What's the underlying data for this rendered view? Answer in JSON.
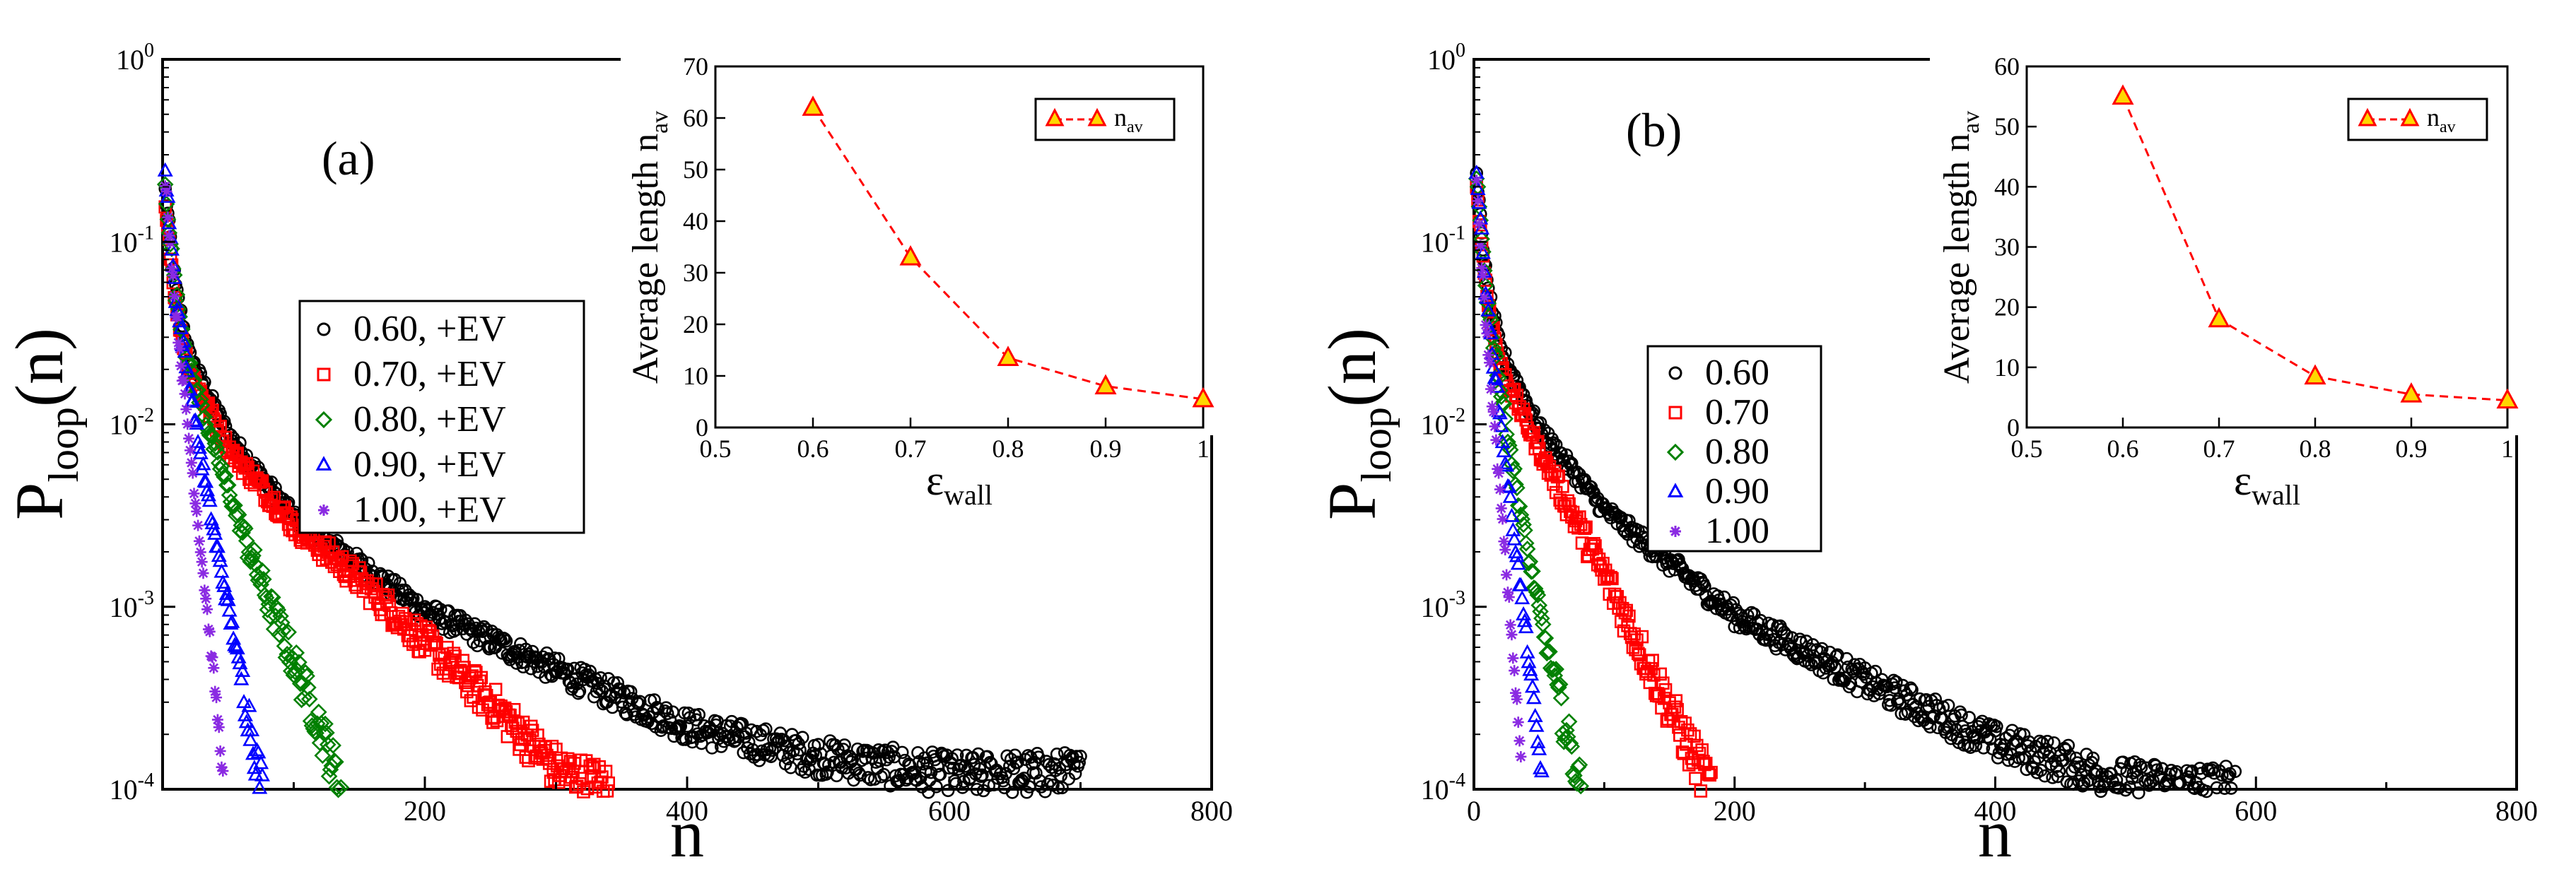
{
  "chart_data": [
    {
      "type": "scatter",
      "panel_label": "(a)",
      "ylabel_main": "P",
      "ylabel_sub": "loop",
      "ylabel_tail": "(n)",
      "xlabel": "n",
      "yscale": "log",
      "xlim": [
        0,
        800
      ],
      "ylim": [
        0.0001,
        1
      ],
      "xticks": [
        200,
        400,
        600,
        800
      ],
      "ytick_exponents": [
        "0",
        "-1",
        "-2",
        "-3",
        "-4"
      ],
      "legend": [
        {
          "label": "0.60, +EV",
          "marker": "circle",
          "color": "#000000"
        },
        {
          "label": "0.70, +EV",
          "marker": "square",
          "color": "#ff0000"
        },
        {
          "label": "0.80, +EV",
          "marker": "diamond",
          "color": "#008000"
        },
        {
          "label": "0.90, +EV",
          "marker": "triangle",
          "color": "#0000ff"
        },
        {
          "label": "1.00, +EV",
          "marker": "star",
          "color": "#8a2be2"
        }
      ],
      "series": [
        {
          "name": "0.60, +EV",
          "marker": "circle",
          "color": "#000000",
          "x_range": [
            2,
            700
          ],
          "knots": [
            [
              2,
              0.19
            ],
            [
              10,
              0.056
            ],
            [
              20,
              0.024
            ],
            [
              50,
              0.0088
            ],
            [
              100,
              0.0031
            ],
            [
              200,
              0.00095
            ],
            [
              300,
              0.00045
            ],
            [
              400,
              0.00022
            ],
            [
              500,
              0.00015
            ],
            [
              600,
              0.00012
            ],
            [
              700,
              0.00012
            ]
          ]
        },
        {
          "name": "0.70, +EV",
          "marker": "square",
          "color": "#ff0000",
          "x_range": [
            2,
            340
          ],
          "knots": [
            [
              2,
              0.17
            ],
            [
              10,
              0.045
            ],
            [
              20,
              0.02
            ],
            [
              50,
              0.0074
            ],
            [
              100,
              0.0028
            ],
            [
              150,
              0.0014
            ],
            [
              200,
              0.00064
            ],
            [
              250,
              0.0003
            ],
            [
              300,
              0.00013
            ],
            [
              340,
              0.0001
            ]
          ]
        },
        {
          "name": "0.80, +EV",
          "marker": "diamond",
          "color": "#008000",
          "x_range": [
            2,
            136
          ],
          "knots": [
            [
              2,
              0.2
            ],
            [
              10,
              0.052
            ],
            [
              20,
              0.021
            ],
            [
              40,
              0.0072
            ],
            [
              60,
              0.0027
            ],
            [
              80,
              0.0011
            ],
            [
              100,
              0.0005
            ],
            [
              120,
              0.00022
            ],
            [
              136,
              0.0001
            ]
          ]
        },
        {
          "name": "0.90, +EV",
          "marker": "triangle",
          "color": "#0000ff",
          "x_range": [
            2,
            76
          ],
          "knots": [
            [
              2,
              0.24
            ],
            [
              10,
              0.05
            ],
            [
              20,
              0.017
            ],
            [
              30,
              0.0061
            ],
            [
              40,
              0.0024
            ],
            [
              50,
              0.001
            ],
            [
              60,
              0.00042
            ],
            [
              70,
              0.00017
            ],
            [
              76,
              0.0001
            ]
          ]
        },
        {
          "name": "1.00, +EV",
          "marker": "star",
          "color": "#8a2be2",
          "x_range": [
            2,
            46
          ],
          "knots": [
            [
              2,
              0.22
            ],
            [
              10,
              0.042
            ],
            [
              20,
              0.0085
            ],
            [
              30,
              0.0018
            ],
            [
              40,
              0.00036
            ],
            [
              46,
              0.00012
            ]
          ]
        }
      ],
      "inset": {
        "type": "line",
        "xlabel_main": "ε",
        "xlabel_sub": "wall",
        "ylabel": "Average length n",
        "ylabel_sub": "av",
        "xlim": [
          0.5,
          1.0
        ],
        "ylim": [
          0,
          70
        ],
        "xticks": [
          "0.5",
          "0.6",
          "0.7",
          "0.8",
          "0.9",
          "1"
        ],
        "yticks": [
          "0",
          "10",
          "20",
          "30",
          "40",
          "50",
          "60",
          "70"
        ],
        "legend_main": "n",
        "legend_sub": "av",
        "x": [
          0.6,
          0.7,
          0.8,
          0.9,
          1.0
        ],
        "y": [
          62,
          33,
          13.5,
          8,
          5.5
        ],
        "line_color": "#ff0000",
        "marker_fill": "#ffd700",
        "marker_edge": "#ff0000"
      }
    },
    {
      "type": "scatter",
      "panel_label": "(b)",
      "ylabel_main": "P",
      "ylabel_sub": "loop",
      "ylabel_tail": "(n)",
      "xlabel": "n",
      "yscale": "log",
      "xlim": [
        0,
        800
      ],
      "ylim": [
        0.0001,
        1
      ],
      "xticks": [
        0,
        200,
        400,
        600,
        800
      ],
      "ytick_exponents": [
        "0",
        "-1",
        "-2",
        "-3",
        "-4"
      ],
      "legend": [
        {
          "label": "0.60",
          "marker": "circle",
          "color": "#000000"
        },
        {
          "label": "0.70",
          "marker": "square",
          "color": "#ff0000"
        },
        {
          "label": "0.80",
          "marker": "diamond",
          "color": "#008000"
        },
        {
          "label": "0.90",
          "marker": "triangle",
          "color": "#0000ff"
        },
        {
          "label": "1.00",
          "marker": "star",
          "color": "#8a2be2"
        }
      ],
      "series": [
        {
          "name": "0.60",
          "marker": "circle",
          "color": "#000000",
          "x_range": [
            2,
            585
          ],
          "knots": [
            [
              2,
              0.22
            ],
            [
              10,
              0.058
            ],
            [
              20,
              0.026
            ],
            [
              50,
              0.0095
            ],
            [
              100,
              0.0034
            ],
            [
              200,
              0.0009
            ],
            [
              300,
              0.00039
            ],
            [
              400,
              0.00018
            ],
            [
              500,
              0.00011
            ],
            [
              585,
              0.0001
            ]
          ]
        },
        {
          "name": "0.70",
          "marker": "square",
          "color": "#ff0000",
          "x_range": [
            2,
            182
          ],
          "knots": [
            [
              2,
              0.2
            ],
            [
              10,
              0.05
            ],
            [
              20,
              0.021
            ],
            [
              50,
              0.0072
            ],
            [
              80,
              0.0028
            ],
            [
              100,
              0.0015
            ],
            [
              130,
              0.00055
            ],
            [
              160,
              0.0002
            ],
            [
              182,
              0.0001
            ]
          ]
        },
        {
          "name": "0.80",
          "marker": "diamond",
          "color": "#008000",
          "x_range": [
            2,
            82
          ],
          "knots": [
            [
              2,
              0.22
            ],
            [
              10,
              0.05
            ],
            [
              20,
              0.016
            ],
            [
              30,
              0.0058
            ],
            [
              40,
              0.0022
            ],
            [
              55,
              0.00065
            ],
            [
              70,
              0.00022
            ],
            [
              82,
              0.0001
            ]
          ]
        },
        {
          "name": "0.90",
          "marker": "triangle",
          "color": "#0000ff",
          "x_range": [
            2,
            52
          ],
          "knots": [
            [
              2,
              0.26
            ],
            [
              10,
              0.045
            ],
            [
              20,
              0.011
            ],
            [
              30,
              0.0028
            ],
            [
              40,
              0.0007
            ],
            [
              52,
              0.00012
            ]
          ]
        },
        {
          "name": "1.00",
          "marker": "star",
          "color": "#8a2be2",
          "x_range": [
            2,
            36
          ],
          "knots": [
            [
              2,
              0.2
            ],
            [
              10,
              0.03
            ],
            [
              20,
              0.0042
            ],
            [
              28,
              0.00085
            ],
            [
              36,
              0.00015
            ]
          ]
        }
      ],
      "inset": {
        "type": "line",
        "xlabel_main": "ε",
        "xlabel_sub": "wall",
        "ylabel": "Average length n",
        "ylabel_sub": "av",
        "xlim": [
          0.5,
          1.0
        ],
        "ylim": [
          0,
          60
        ],
        "xticks": [
          "0.5",
          "0.6",
          "0.7",
          "0.8",
          "0.9",
          "1"
        ],
        "yticks": [
          "0",
          "10",
          "20",
          "30",
          "40",
          "50",
          "60"
        ],
        "legend_main": "n",
        "legend_sub": "av",
        "x": [
          0.6,
          0.7,
          0.8,
          0.9,
          1.0
        ],
        "y": [
          55,
          18,
          8.5,
          5.5,
          4.5
        ],
        "line_color": "#ff0000",
        "marker_fill": "#ffd700",
        "marker_edge": "#ff0000"
      }
    }
  ]
}
